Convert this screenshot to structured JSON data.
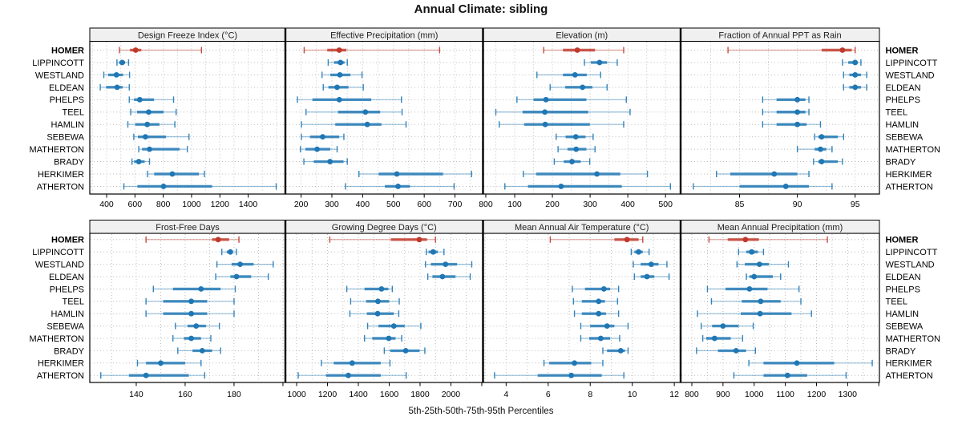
{
  "title": "Annual Climate: sibling",
  "caption": "5th-25th-50th-75th-95th Percentiles",
  "colors": {
    "highlight": "#c0392b",
    "series": "#1f77b4",
    "header_bg": "#f0f0f0",
    "grid": "#bdbdbd",
    "border": "#000000",
    "text": "#000000"
  },
  "categories": [
    "HOMER",
    "LIPPINCOTT",
    "WESTLAND",
    "ELDEAN",
    "PHELPS",
    "TEEL",
    "HAMLIN",
    "SEBEWA",
    "MATHERTON",
    "BRADY",
    "HERKIMER",
    "ATHERTON"
  ],
  "highlight_category": "HOMER",
  "chart_data": {
    "type": "dot-whisker-trellis",
    "percentiles": [
      5,
      25,
      50,
      75,
      95
    ],
    "layout_hint": {
      "grid": "2 rows x 4 cols",
      "gridlines": "dotted",
      "category_labels_both_sides": true,
      "legend": "none"
    },
    "panels": [
      {
        "title": "Design Freeze Index (°C)",
        "row": 0,
        "col": 0,
        "xlim": [
          281,
          1663
        ],
        "grid_step": 100,
        "tick_values": [
          400,
          600,
          800,
          1000,
          1200,
          1400
        ],
        "tick_labels": [
          "400",
          "600",
          "800",
          "1000",
          "1200",
          "1400"
        ],
        "values": [
          [
            490,
            565,
            605,
            645,
            1070
          ],
          [
            473,
            488,
            510,
            531,
            555
          ],
          [
            380,
            411,
            469,
            516,
            562
          ],
          [
            355,
            396,
            474,
            513,
            560
          ],
          [
            560,
            593,
            634,
            735,
            873
          ],
          [
            570,
            615,
            697,
            802,
            891
          ],
          [
            550,
            602,
            687,
            773,
            882
          ],
          [
            592,
            621,
            674,
            820,
            982
          ],
          [
            627,
            650,
            703,
            915,
            970
          ],
          [
            579,
            594,
            627,
            669,
            703
          ],
          [
            688,
            736,
            864,
            1052,
            1091
          ],
          [
            522,
            617,
            802,
            1145,
            1598
          ]
        ]
      },
      {
        "title": "Effective Precipitation (mm)",
        "row": 0,
        "col": 1,
        "xlim": [
          149,
          791
        ],
        "grid_step": 50,
        "tick_values": [
          200,
          300,
          400,
          500,
          600,
          700,
          800
        ],
        "tick_labels": [
          "200",
          "300",
          "400",
          "500",
          "600",
          "700",
          "800"
        ],
        "values": [
          [
            210,
            285,
            324,
            347,
            650
          ],
          [
            288,
            307,
            328,
            341,
            350
          ],
          [
            268,
            295,
            326,
            360,
            398
          ],
          [
            272,
            289,
            317,
            354,
            402
          ],
          [
            188,
            237,
            324,
            428,
            526
          ],
          [
            216,
            320,
            409,
            457,
            528
          ],
          [
            201,
            311,
            415,
            461,
            541
          ],
          [
            201,
            229,
            270,
            324,
            339
          ],
          [
            198,
            214,
            252,
            295,
            317
          ],
          [
            209,
            241,
            294,
            338,
            350
          ],
          [
            388,
            452,
            511,
            661,
            754
          ],
          [
            344,
            472,
            515,
            554,
            697
          ]
        ]
      },
      {
        "title": "Elevation (m)",
        "row": 0,
        "col": 2,
        "xlim": [
          16,
          540
        ],
        "grid_step": 50,
        "tick_values": [
          100,
          200,
          300,
          400,
          500
        ],
        "tick_labels": [
          "100",
          "200",
          "300",
          "400",
          "500"
        ],
        "values": [
          [
            177,
            228,
            266,
            313,
            389
          ],
          [
            285,
            302,
            325,
            345,
            372
          ],
          [
            159,
            228,
            260,
            291,
            328
          ],
          [
            194,
            234,
            280,
            306,
            345
          ],
          [
            106,
            150,
            183,
            290,
            396
          ],
          [
            50,
            121,
            180,
            295,
            406
          ],
          [
            59,
            125,
            181,
            299,
            389
          ],
          [
            210,
            235,
            262,
            288,
            308
          ],
          [
            215,
            240,
            263,
            290,
            313
          ],
          [
            205,
            230,
            252,
            275,
            299
          ],
          [
            123,
            157,
            318,
            380,
            452
          ],
          [
            74,
            135,
            223,
            384,
            513
          ]
        ]
      },
      {
        "title": "Fraction of Annual PPT as Rain",
        "row": 0,
        "col": 3,
        "xlim": [
          79.9,
          97.1
        ],
        "grid_step": 2.5,
        "tick_values": [
          85,
          90,
          95
        ],
        "tick_labels": [
          "85",
          "90",
          "95"
        ],
        "values": [
          [
            84.0,
            92.1,
            93.9,
            94.7,
            95.0
          ],
          [
            93.9,
            94.4,
            95.0,
            95.2,
            95.5
          ],
          [
            94.0,
            94.5,
            95.0,
            95.5,
            96.0
          ],
          [
            94.0,
            94.5,
            95.0,
            95.5,
            96.0
          ],
          [
            87.0,
            88.2,
            90.0,
            90.7,
            91.0
          ],
          [
            87.0,
            88.2,
            90.0,
            90.7,
            91.0
          ],
          [
            87.0,
            88.2,
            90.0,
            90.8,
            92.0
          ],
          [
            91.5,
            91.8,
            92.1,
            93.5,
            94.0
          ],
          [
            90.0,
            91.5,
            92.0,
            92.5,
            93.0
          ],
          [
            91.4,
            91.8,
            92.1,
            93.5,
            93.9
          ],
          [
            83.0,
            84.2,
            88.0,
            90.0,
            91.0
          ],
          [
            81.0,
            85.0,
            89.0,
            91.0,
            93.0
          ]
        ]
      },
      {
        "title": "Frost-Free Days",
        "row": 1,
        "col": 0,
        "xlim": [
          121,
          201
        ],
        "grid_step": 10,
        "tick_values": [
          140,
          160,
          180,
          200
        ],
        "tick_labels": [
          "140",
          "160",
          "180",
          ""
        ],
        "values": [
          [
            144,
            171,
            173.5,
            178,
            182
          ],
          [
            175,
            177,
            178.5,
            179.5,
            181
          ],
          [
            173,
            179,
            182.5,
            188,
            196
          ],
          [
            172.5,
            178.5,
            181,
            187,
            194
          ],
          [
            147,
            155,
            166.5,
            174.5,
            180.5
          ],
          [
            144,
            151,
            162.5,
            169,
            180
          ],
          [
            144,
            151,
            162.5,
            169,
            180
          ],
          [
            156,
            161,
            164.5,
            168.5,
            174
          ],
          [
            155,
            159.5,
            162.5,
            166.5,
            170.5
          ],
          [
            157,
            163,
            167,
            171,
            174.5
          ],
          [
            140.5,
            144,
            150,
            160,
            166.5
          ],
          [
            125.5,
            137,
            144,
            161.5,
            168
          ]
        ]
      },
      {
        "title": "Growing Degree Days (°C)",
        "row": 1,
        "col": 1,
        "xlim": [
          927,
          2208
        ],
        "grid_step": 100,
        "tick_values": [
          1000,
          1200,
          1400,
          1600,
          1800,
          2000,
          2200
        ],
        "tick_labels": [
          "1000",
          "1200",
          "1400",
          "1600",
          "1800",
          "2000",
          ""
        ],
        "values": [
          [
            1215,
            1610,
            1795,
            1845,
            1900
          ],
          [
            1840,
            1855,
            1885,
            1915,
            1955
          ],
          [
            1835,
            1870,
            1965,
            2040,
            2135
          ],
          [
            1850,
            1880,
            1945,
            2030,
            2125
          ],
          [
            1325,
            1440,
            1550,
            1595,
            1620
          ],
          [
            1350,
            1450,
            1527,
            1600,
            1665
          ],
          [
            1345,
            1455,
            1525,
            1630,
            1662
          ],
          [
            1460,
            1530,
            1630,
            1700,
            1805
          ],
          [
            1440,
            1490,
            1597,
            1641,
            1681
          ],
          [
            1568,
            1606,
            1707,
            1797,
            1831
          ],
          [
            1160,
            1240,
            1360,
            1545,
            1605
          ],
          [
            1010,
            1190,
            1335,
            1545,
            1710
          ]
        ]
      },
      {
        "title": "Mean Annual Air Temperature (°C)",
        "row": 1,
        "col": 2,
        "xlim": [
          2.9,
          12.3
        ],
        "grid_step": 1,
        "tick_values": [
          4,
          6,
          8,
          10,
          12
        ],
        "tick_labels": [
          "4",
          "6",
          "8",
          "10",
          "12"
        ],
        "values": [
          [
            6.1,
            9.15,
            9.75,
            10.3,
            10.5
          ],
          [
            9.95,
            10.1,
            10.3,
            10.5,
            10.8
          ],
          [
            10.05,
            10.4,
            10.9,
            11.25,
            11.65
          ],
          [
            10.1,
            10.4,
            10.7,
            11.05,
            11.75
          ],
          [
            7.15,
            7.75,
            8.65,
            8.95,
            9.35
          ],
          [
            7.2,
            7.6,
            8.4,
            8.7,
            9.3
          ],
          [
            7.25,
            7.6,
            8.4,
            8.75,
            9.35
          ],
          [
            7.55,
            8.0,
            8.8,
            9.15,
            9.8
          ],
          [
            7.55,
            7.95,
            8.5,
            8.95,
            9.4
          ],
          [
            8.6,
            8.8,
            9.45,
            9.65,
            9.8
          ],
          [
            5.8,
            6.05,
            7.25,
            8.05,
            8.6
          ],
          [
            3.45,
            5.5,
            7.1,
            8.55,
            9.6
          ]
        ]
      },
      {
        "title": "Mean Annual Precipitation (mm)",
        "row": 1,
        "col": 3,
        "xlim": [
          764,
          1402
        ],
        "grid_step": 50,
        "tick_values": [
          800,
          900,
          1000,
          1100,
          1200,
          1300,
          1400
        ],
        "tick_labels": [
          "800",
          "900",
          "1000",
          "1100",
          "1200",
          "1300",
          ""
        ],
        "values": [
          [
            855,
            915,
            972,
            1015,
            1235
          ],
          [
            950,
            975,
            992,
            1012,
            1030
          ],
          [
            945,
            970,
            1017,
            1047,
            1110
          ],
          [
            975,
            985,
            1000,
            1060,
            1085
          ],
          [
            850,
            908,
            985,
            1043,
            1144
          ],
          [
            863,
            960,
            1021,
            1085,
            1150
          ],
          [
            818,
            957,
            1019,
            1120,
            1184
          ],
          [
            830,
            865,
            900,
            950,
            997
          ],
          [
            835,
            846,
            873,
            925,
            963
          ],
          [
            815,
            884,
            942,
            974,
            1004
          ],
          [
            983,
            1030,
            1137,
            1257,
            1379
          ],
          [
            935,
            1030,
            1107,
            1170,
            1295
          ]
        ]
      }
    ]
  }
}
